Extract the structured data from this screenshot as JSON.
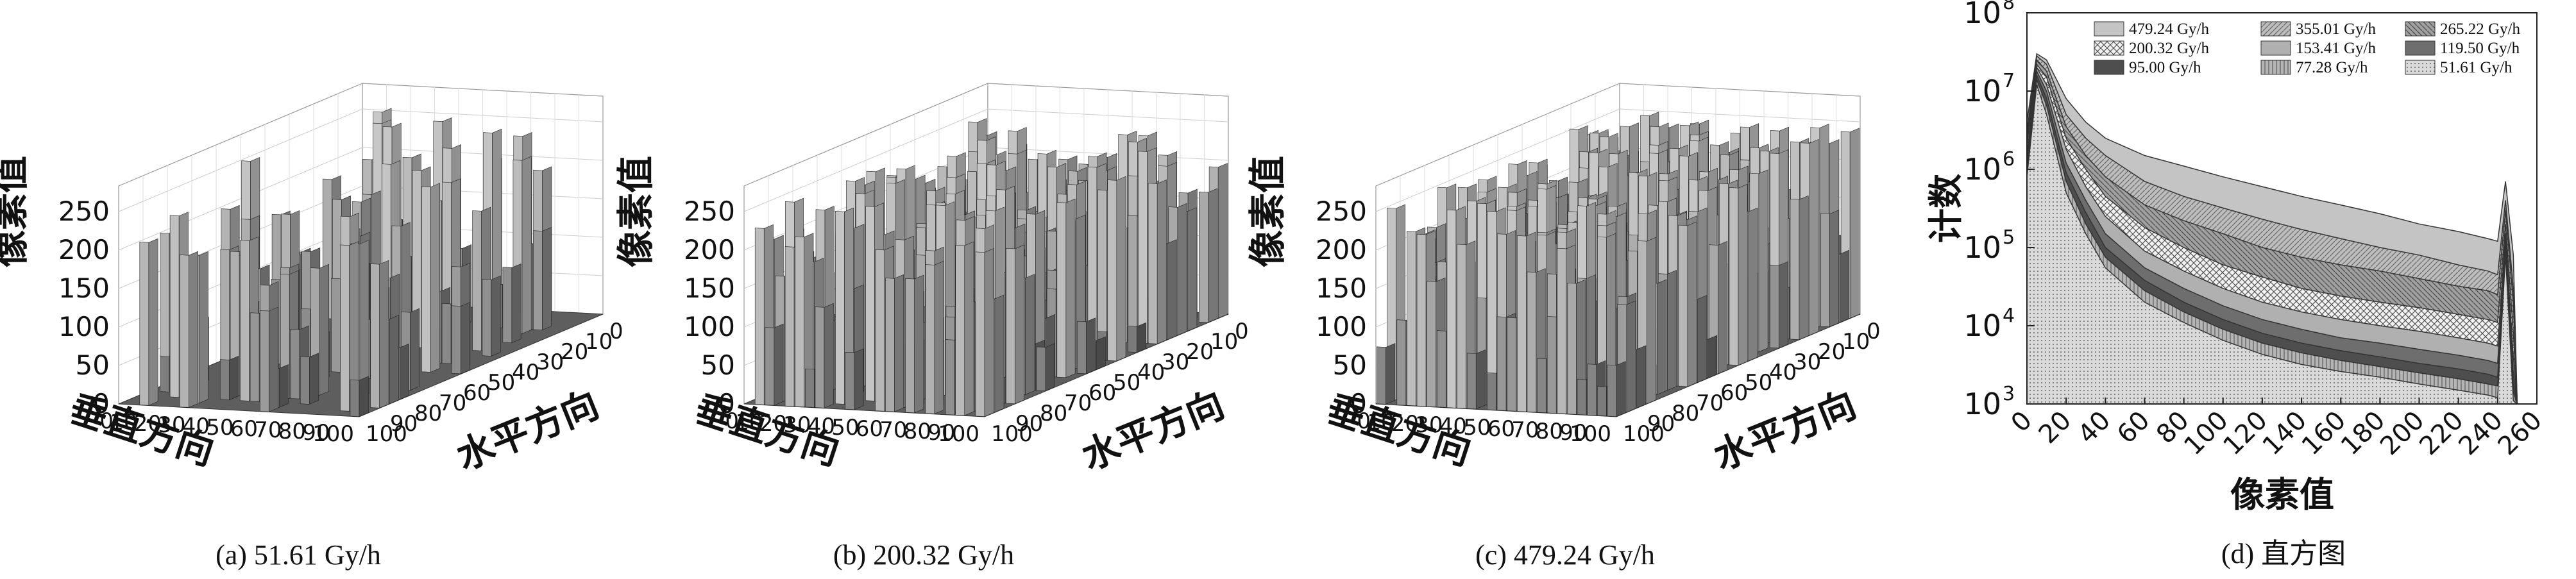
{
  "panels3d": [
    {
      "caption": "(a) 51.61 Gy/h",
      "zlabel": "像素值",
      "xlabel": "垂直方向",
      "ylabel": "水平方向",
      "zticks": [
        "0",
        "50",
        "100",
        "150",
        "200",
        "250"
      ],
      "xticks": [
        "0",
        "10",
        "20",
        "30",
        "40",
        "50",
        "60",
        "70",
        "80",
        "90",
        "100"
      ],
      "yticks": [
        "0",
        "10",
        "20",
        "30",
        "40",
        "50",
        "60",
        "70",
        "80",
        "90",
        "100"
      ],
      "density": 0.18
    },
    {
      "caption": "(b) 200.32 Gy/h",
      "zlabel": "像素值",
      "xlabel": "垂直方向",
      "ylabel": "水平方向",
      "zticks": [
        "0",
        "50",
        "100",
        "150",
        "200",
        "250"
      ],
      "xticks": [
        "0",
        "10",
        "20",
        "30",
        "40",
        "50",
        "60",
        "70",
        "80",
        "90",
        "100"
      ],
      "yticks": [
        "0",
        "10",
        "20",
        "30",
        "40",
        "50",
        "60",
        "70",
        "80",
        "90",
        "100"
      ],
      "density": 0.5
    },
    {
      "caption": "(c) 479.24 Gy/h",
      "zlabel": "像素值",
      "xlabel": "垂直方向",
      "ylabel": "水平方向",
      "zticks": [
        "0",
        "50",
        "100",
        "150",
        "200",
        "250"
      ],
      "xticks": [
        "0",
        "10",
        "20",
        "30",
        "40",
        "50",
        "60",
        "70",
        "80",
        "90",
        "100"
      ],
      "yticks": [
        "0",
        "10",
        "20",
        "30",
        "40",
        "50",
        "60",
        "70",
        "80",
        "90",
        "100"
      ],
      "density": 0.85
    }
  ],
  "chart_data": {
    "type": "area",
    "caption": "(d) 直方图",
    "xlabel": "像素值",
    "ylabel": "计数",
    "xlim": [
      0,
      260
    ],
    "ylim": [
      1000,
      100000000
    ],
    "yscale": "log",
    "xticks": [
      "0",
      "20",
      "40",
      "60",
      "80",
      "100",
      "120",
      "140",
      "160",
      "180",
      "200",
      "220",
      "240",
      "260"
    ],
    "yticks": [
      {
        "base": "10",
        "exp": "3"
      },
      {
        "base": "10",
        "exp": "4"
      },
      {
        "base": "10",
        "exp": "5"
      },
      {
        "base": "10",
        "exp": "6"
      },
      {
        "base": "10",
        "exp": "7"
      },
      {
        "base": "10",
        "exp": "8"
      }
    ],
    "x": [
      0,
      5,
      10,
      20,
      30,
      40,
      60,
      80,
      100,
      120,
      140,
      160,
      180,
      200,
      220,
      235,
      240,
      244,
      248,
      250
    ],
    "series": [
      {
        "name": "479.24 Gy/h",
        "fill": "#c8c8c8",
        "values": [
          4000000,
          30000000,
          25000000,
          8000000,
          4000000,
          2500000,
          1500000,
          1100000,
          800000,
          600000,
          450000,
          350000,
          270000,
          200000,
          160000,
          130000,
          120000,
          700000,
          80000,
          1000
        ]
      },
      {
        "name": "355.01 Gy/h",
        "fill": "#a8a8a8",
        "values": [
          3000000,
          28000000,
          22000000,
          5000000,
          2500000,
          1500000,
          700000,
          450000,
          320000,
          230000,
          170000,
          130000,
          100000,
          80000,
          60000,
          50000,
          45000,
          400000,
          30000,
          1000
        ]
      },
      {
        "name": "265.22 Gy/h",
        "fill": "#909090",
        "values": [
          2500000,
          25000000,
          18000000,
          3500000,
          1500000,
          800000,
          350000,
          220000,
          150000,
          100000,
          75000,
          60000,
          50000,
          40000,
          32000,
          28000,
          25000,
          300000,
          20000,
          1000
        ]
      },
      {
        "name": "200.32 Gy/h",
        "fill": "#d8d8d8",
        "values": [
          2000000,
          22000000,
          15000000,
          2500000,
          1000000,
          450000,
          180000,
          100000,
          60000,
          42000,
          30000,
          24000,
          20000,
          17000,
          14000,
          12000,
          11000,
          200000,
          8000,
          1000
        ]
      },
      {
        "name": "153.41 Gy/h",
        "fill": "#b8b8b8",
        "values": [
          1500000,
          20000000,
          12000000,
          1800000,
          600000,
          250000,
          90000,
          50000,
          30000,
          20000,
          15000,
          12000,
          10000,
          8500,
          7000,
          6000,
          5500,
          150000,
          4000,
          1000
        ]
      },
      {
        "name": "119.50 Gy/h",
        "fill": "#7a7a7a",
        "values": [
          1200000,
          18000000,
          10000000,
          1200000,
          400000,
          150000,
          55000,
          30000,
          18000,
          12000,
          9000,
          7000,
          6000,
          5000,
          4200,
          3600,
          3300,
          120000,
          2500,
          1000
        ]
      },
      {
        "name": "95.00 Gy/h",
        "fill": "#5a5a5a",
        "values": [
          1000000,
          16000000,
          8000000,
          900000,
          280000,
          100000,
          38000,
          20000,
          12000,
          8000,
          6000,
          4800,
          4000,
          3300,
          2800,
          2400,
          2200,
          100000,
          1800,
          1000
        ]
      },
      {
        "name": "77.28 Gy/h",
        "fill": "#9a9a9a",
        "values": [
          900000,
          14000000,
          6500000,
          700000,
          200000,
          75000,
          28000,
          15000,
          9000,
          6000,
          4500,
          3600,
          3000,
          2500,
          2100,
          1800,
          1700,
          90000,
          1400,
          1000
        ]
      },
      {
        "name": "51.61 Gy/h",
        "fill": "#cfcfcf",
        "values": [
          800000,
          12000000,
          5000000,
          500000,
          150000,
          55000,
          20000,
          11000,
          6500,
          4300,
          3200,
          2600,
          2200,
          1800,
          1500,
          1300,
          1200,
          80000,
          1100,
          1000
        ]
      }
    ]
  }
}
